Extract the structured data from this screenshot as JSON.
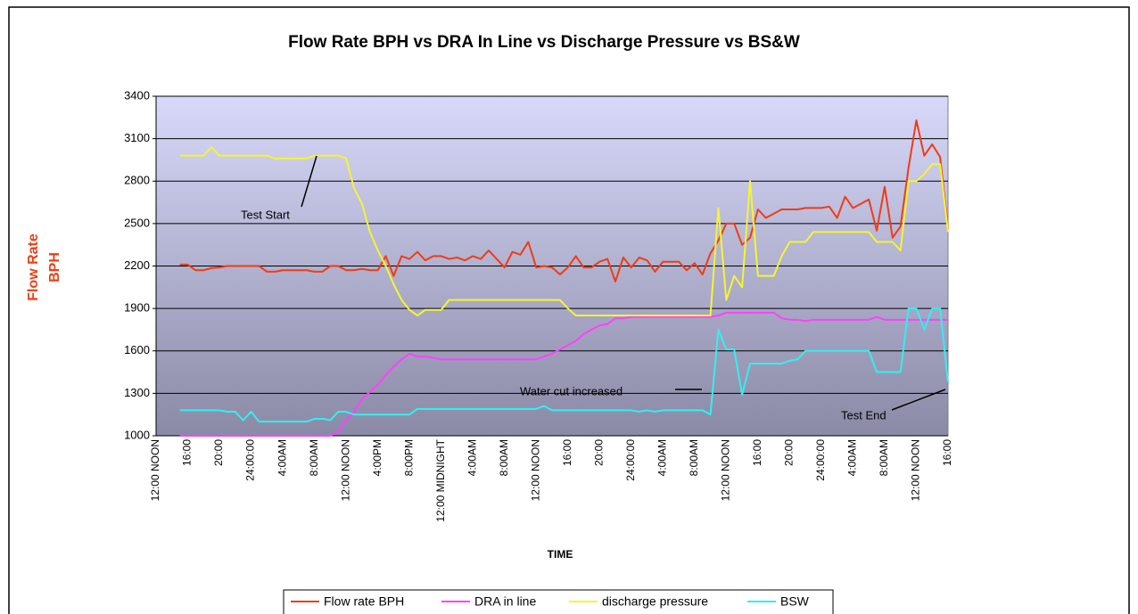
{
  "chart_data": {
    "type": "line",
    "title": "Flow Rate BPH vs DRA In Line vs Discharge Pressure vs BS&W",
    "y_label_lines": [
      "Flow Rate",
      "BPH"
    ],
    "x_label": "TIME",
    "annotations": [
      "Test Start",
      "Water cut increased",
      "Test End"
    ],
    "categories": [
      "12:00 NOON",
      null,
      null,
      null,
      "16:00",
      null,
      null,
      null,
      "20:00",
      null,
      null,
      null,
      "24:00:00",
      null,
      null,
      null,
      "4:00AM",
      null,
      null,
      null,
      "8:00AM",
      null,
      null,
      null,
      "12:00 NOON",
      null,
      null,
      null,
      "4:00PM",
      null,
      null,
      null,
      "8:00PM",
      null,
      null,
      null,
      "12:00 MIDNIGHT",
      null,
      null,
      null,
      "4:00AM",
      null,
      null,
      null,
      "8:00AM",
      null,
      null,
      null,
      "12:00 NOON",
      null,
      null,
      null,
      "16:00",
      null,
      null,
      null,
      "20:00",
      null,
      null,
      null,
      "24:00:00",
      null,
      null,
      null,
      "4:00AM",
      null,
      null,
      null,
      "8:00AM",
      null,
      null,
      null,
      "12:00 NOON",
      null,
      null,
      null,
      "16:00",
      null,
      null,
      null,
      "20:00",
      null,
      null,
      null,
      "24:00:00",
      null,
      null,
      null,
      "4:00AM",
      null,
      null,
      null,
      "8:00AM",
      null,
      null,
      null,
      "12:00 NOON",
      null,
      null,
      null,
      "16:00"
    ],
    "series": [
      {
        "name": "Flow rate BPH",
        "color": "#f03c14",
        "values": [
          null,
          null,
          null,
          2210,
          2210,
          2170,
          2170,
          2185,
          2190,
          2200,
          2200,
          2200,
          2200,
          2200,
          2160,
          2160,
          2170,
          2170,
          2170,
          2170,
          2160,
          2160,
          2200,
          2200,
          2170,
          2170,
          2180,
          2170,
          2170,
          2270,
          2130,
          2270,
          2250,
          2300,
          2240,
          2270,
          2270,
          2250,
          2260,
          2240,
          2270,
          2250,
          2310,
          2250,
          2190,
          2300,
          2280,
          2370,
          2190,
          2200,
          2190,
          2140,
          2190,
          2270,
          2190,
          2190,
          2230,
          2250,
          2090,
          2260,
          2190,
          2260,
          2240,
          2160,
          2230,
          2230,
          2230,
          2170,
          2220,
          2140,
          2290,
          2380,
          2500,
          2500,
          2350,
          2400,
          2600,
          2540,
          2570,
          2600,
          2600,
          2600,
          2610,
          2610,
          2610,
          2620,
          2540,
          2690,
          2610,
          2640,
          2670,
          2450,
          2760,
          2400,
          2480,
          2890,
          3230,
          2980,
          3060,
          2970,
          2460
        ]
      },
      {
        "name": "DRA in line",
        "color": "#ff40ff",
        "values": [
          null,
          null,
          null,
          1000,
          1000,
          1000,
          1000,
          1000,
          1000,
          1000,
          1000,
          1000,
          1000,
          1000,
          1000,
          1000,
          1000,
          1000,
          1000,
          1000,
          1000,
          1000,
          1000,
          1030,
          1110,
          1170,
          1260,
          1310,
          1360,
          1430,
          1490,
          1540,
          1580,
          1560,
          1560,
          1550,
          1540,
          1540,
          1540,
          1540,
          1540,
          1540,
          1540,
          1540,
          1540,
          1540,
          1540,
          1540,
          1540,
          1560,
          1580,
          1610,
          1640,
          1670,
          1720,
          1750,
          1780,
          1790,
          1830,
          1830,
          1840,
          1840,
          1840,
          1840,
          1840,
          1840,
          1840,
          1840,
          1840,
          1840,
          1840,
          1850,
          1870,
          1870,
          1870,
          1870,
          1870,
          1870,
          1870,
          1830,
          1820,
          1820,
          1810,
          1820,
          1820,
          1820,
          1820,
          1820,
          1820,
          1820,
          1820,
          1840,
          1820,
          1820,
          1820,
          1820,
          1820,
          1820,
          1820,
          1820,
          1820
        ]
      },
      {
        "name": "discharge pressure",
        "color": "#f5f530",
        "values": [
          null,
          null,
          null,
          2980,
          2980,
          2980,
          2980,
          3040,
          2980,
          2980,
          2980,
          2980,
          2980,
          2980,
          2980,
          2960,
          2960,
          2960,
          2960,
          2960,
          2980,
          2980,
          2980,
          2980,
          2960,
          2750,
          2640,
          2440,
          2310,
          2200,
          2070,
          1960,
          1890,
          1850,
          1890,
          1890,
          1890,
          1960,
          1960,
          1960,
          1960,
          1960,
          1960,
          1960,
          1960,
          1960,
          1960,
          1960,
          1960,
          1960,
          1960,
          1960,
          1900,
          1850,
          1850,
          1850,
          1850,
          1850,
          1850,
          1850,
          1850,
          1850,
          1850,
          1850,
          1850,
          1850,
          1850,
          1850,
          1850,
          1850,
          1850,
          2610,
          1960,
          2130,
          2050,
          2800,
          2130,
          2130,
          2130,
          2270,
          2370,
          2370,
          2370,
          2440,
          2440,
          2440,
          2440,
          2440,
          2440,
          2440,
          2440,
          2370,
          2370,
          2370,
          2310,
          2800,
          2800,
          2850,
          2920,
          2920,
          2440
        ]
      },
      {
        "name": "BSW",
        "color": "#30f0f0",
        "values": [
          null,
          null,
          null,
          1180,
          1180,
          1180,
          1180,
          1180,
          1180,
          1170,
          1170,
          1110,
          1170,
          1100,
          1100,
          1100,
          1100,
          1100,
          1100,
          1100,
          1120,
          1120,
          1110,
          1170,
          1170,
          1150,
          1150,
          1150,
          1150,
          1150,
          1150,
          1150,
          1150,
          1190,
          1190,
          1190,
          1190,
          1190,
          1190,
          1190,
          1190,
          1190,
          1190,
          1190,
          1190,
          1190,
          1190,
          1190,
          1190,
          1210,
          1180,
          1180,
          1180,
          1180,
          1180,
          1180,
          1180,
          1180,
          1180,
          1180,
          1180,
          1170,
          1180,
          1170,
          1180,
          1180,
          1180,
          1180,
          1180,
          1180,
          1150,
          1750,
          1610,
          1610,
          1290,
          1510,
          1510,
          1510,
          1510,
          1510,
          1530,
          1540,
          1600,
          1600,
          1600,
          1600,
          1600,
          1600,
          1600,
          1600,
          1600,
          1450,
          1450,
          1450,
          1450,
          1900,
          1900,
          1750,
          1900,
          1900,
          1380
        ]
      }
    ],
    "ylim": [
      1000,
      3400
    ],
    "yticks": [
      1000,
      1300,
      1600,
      1900,
      2200,
      2500,
      2800,
      3100,
      3400
    ],
    "grid": true,
    "legend": "bottom"
  }
}
